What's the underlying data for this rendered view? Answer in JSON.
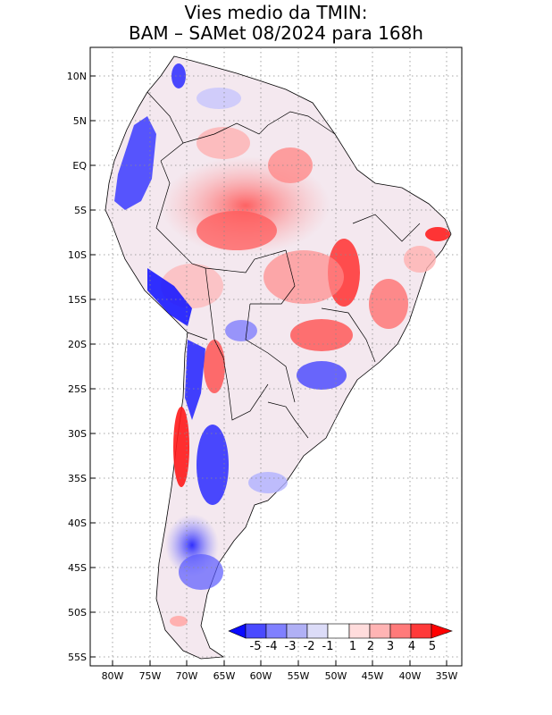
{
  "title": {
    "line1": "Vies medio da TMIN:",
    "line2": "BAM – SAMet 08/2024  para 168h"
  },
  "map": {
    "region": "South America",
    "lat_labels": [
      "10N",
      "5N",
      "EQ",
      "5S",
      "10S",
      "15S",
      "20S",
      "25S",
      "30S",
      "35S",
      "40S",
      "45S",
      "50S",
      "55S"
    ],
    "lon_labels": [
      "80W",
      "75W",
      "70W",
      "65W",
      "60W",
      "55W",
      "50W",
      "45W",
      "40W",
      "35W"
    ]
  },
  "colorbar": {
    "labels": [
      "-5",
      "-4",
      "-3",
      "-2",
      "-1",
      "1",
      "2",
      "3",
      "4",
      "5"
    ],
    "colors": [
      "#0a0aff",
      "#4a4aff",
      "#8080ff",
      "#b0b0f5",
      "#dcdcf8",
      "#ffffff",
      "#ffdcdc",
      "#ffb4b4",
      "#ff7a7a",
      "#ff3a3a",
      "#ff0000"
    ]
  }
}
